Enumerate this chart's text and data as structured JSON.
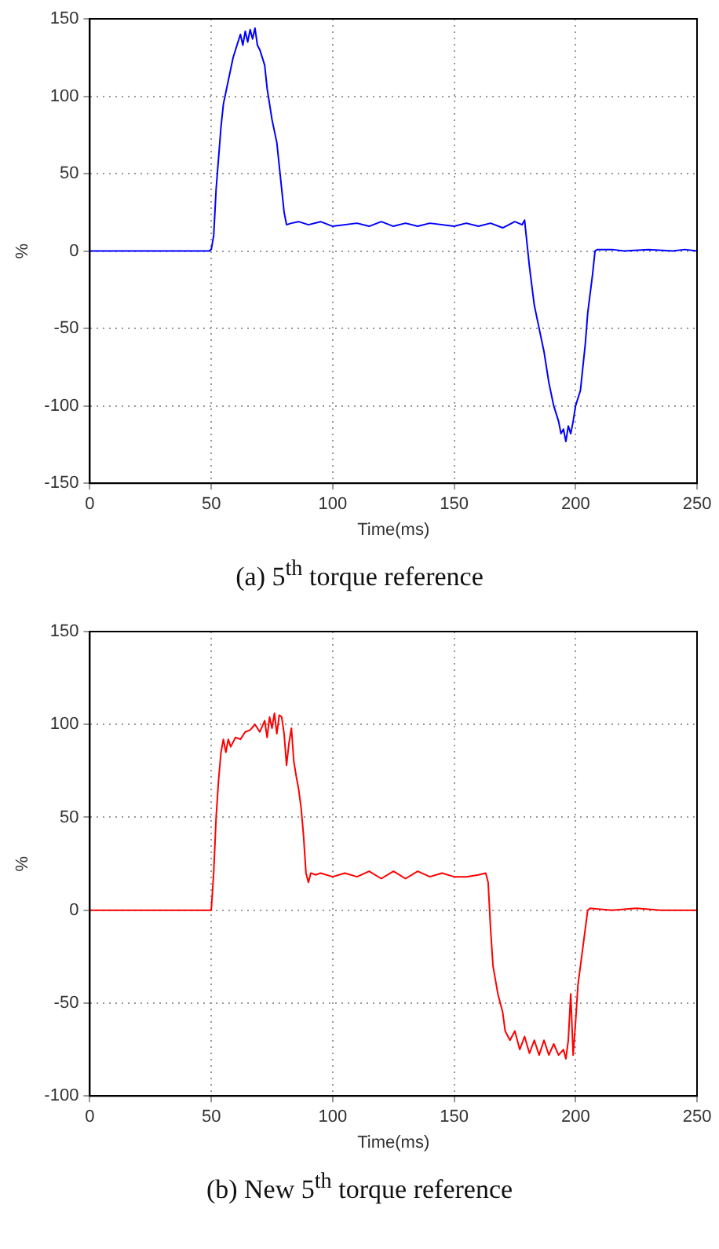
{
  "chart_data": [
    {
      "type": "line",
      "title": "(a) 5$^{th}$ torque reference",
      "xlabel": "Time(ms)",
      "ylabel": "%",
      "xlim": [
        0,
        250
      ],
      "xticks": [
        0,
        50,
        100,
        150,
        200,
        250
      ],
      "ylim": [
        -150,
        150
      ],
      "yticks": [
        -150,
        -100,
        -50,
        0,
        50,
        100,
        150
      ],
      "grid": true,
      "legend": false,
      "marker": "none",
      "line_style": "solid",
      "series": [
        {
          "color": "#0000ff",
          "x": [
            0,
            49,
            50,
            51,
            52,
            53,
            54,
            55,
            57,
            59,
            61,
            62,
            63,
            64,
            65,
            66,
            67,
            68,
            69,
            70,
            72,
            73,
            75,
            77,
            79,
            80,
            81,
            83,
            86,
            90,
            95,
            100,
            110,
            115,
            120,
            125,
            130,
            135,
            140,
            150,
            155,
            160,
            165,
            170,
            175,
            178,
            179,
            180,
            181,
            183,
            185,
            187,
            189,
            191,
            193,
            194,
            195,
            196,
            197,
            198,
            199,
            200,
            202,
            204,
            205,
            207,
            208,
            209,
            215,
            220,
            230,
            240,
            245,
            250
          ],
          "values": [
            0,
            0,
            1,
            10,
            40,
            60,
            80,
            95,
            110,
            125,
            135,
            140,
            133,
            142,
            135,
            143,
            137,
            144,
            133,
            130,
            120,
            105,
            85,
            70,
            40,
            25,
            17,
            18,
            19,
            17,
            19,
            16,
            18,
            16,
            19,
            16,
            18,
            16,
            18,
            16,
            18,
            16,
            18,
            15,
            19,
            17,
            20,
            5,
            -10,
            -35,
            -50,
            -65,
            -85,
            -100,
            -110,
            -118,
            -115,
            -123,
            -113,
            -118,
            -110,
            -100,
            -90,
            -60,
            -40,
            -15,
            0,
            1,
            1,
            0,
            1,
            0,
            1,
            0
          ]
        }
      ]
    },
    {
      "type": "line",
      "title": "(b) New 5$^{th}$ torque reference",
      "xlabel": "Time(ms)",
      "ylabel": "%",
      "xlim": [
        0,
        250
      ],
      "xticks": [
        0,
        50,
        100,
        150,
        200,
        250
      ],
      "ylim": [
        -100,
        150
      ],
      "yticks": [
        -100,
        -50,
        0,
        50,
        100,
        150
      ],
      "grid": true,
      "legend": false,
      "marker": "none",
      "line_style": "solid",
      "series": [
        {
          "color": "#ff0000",
          "x": [
            0,
            50,
            51,
            52,
            53,
            54,
            55,
            56,
            57,
            58,
            60,
            62,
            64,
            66,
            68,
            70,
            72,
            73,
            74,
            75,
            76,
            77,
            78,
            79,
            80,
            81,
            82,
            83,
            84,
            85,
            86,
            87,
            88,
            89,
            90,
            91,
            93,
            95,
            100,
            105,
            110,
            115,
            120,
            125,
            130,
            135,
            140,
            145,
            150,
            155,
            160,
            163,
            164,
            165,
            166,
            168,
            170,
            171,
            173,
            175,
            177,
            179,
            181,
            183,
            185,
            187,
            189,
            191,
            193,
            195,
            196,
            197,
            198,
            199,
            200,
            201,
            203,
            205,
            206,
            215,
            225,
            235,
            250
          ],
          "values": [
            0,
            0,
            20,
            50,
            70,
            85,
            92,
            85,
            92,
            88,
            93,
            92,
            96,
            97,
            100,
            96,
            102,
            93,
            104,
            98,
            106,
            95,
            105,
            104,
            95,
            78,
            90,
            98,
            80,
            72,
            65,
            55,
            40,
            20,
            15,
            20,
            19,
            20,
            18,
            20,
            18,
            21,
            17,
            21,
            17,
            21,
            18,
            20,
            18,
            18,
            19,
            20,
            15,
            -10,
            -30,
            -45,
            -55,
            -65,
            -70,
            -65,
            -75,
            -68,
            -77,
            -70,
            -78,
            -70,
            -78,
            -72,
            -78,
            -75,
            -80,
            -70,
            -45,
            -78,
            -60,
            -40,
            -20,
            0,
            1,
            0,
            1,
            0,
            0
          ]
        }
      ]
    }
  ]
}
